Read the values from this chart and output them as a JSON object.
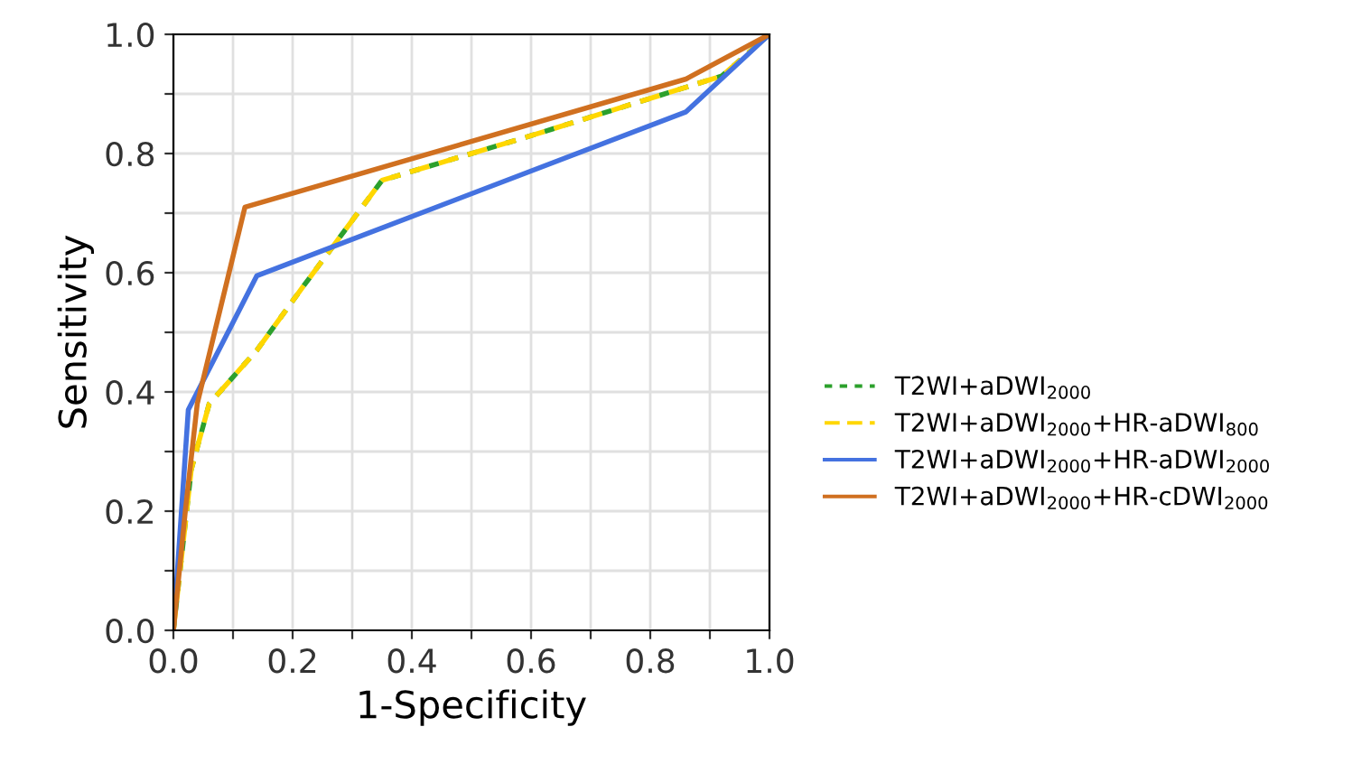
{
  "chart_data": {
    "type": "line",
    "xlabel": "1-Specificity",
    "ylabel": "Sensitivity",
    "xlim": [
      0,
      1
    ],
    "ylim": [
      0,
      1
    ],
    "xticks": [
      {
        "value": 0,
        "label": "0.0"
      },
      {
        "value": 0.1,
        "label": null
      },
      0.2,
      {
        "value": 0.3,
        "label": null
      },
      0.4,
      {
        "value": 0.5,
        "label": null
      },
      0.6,
      {
        "value": 0.7,
        "label": null
      },
      0.8,
      {
        "value": 0.9,
        "label": null
      },
      {
        "value": 1,
        "label": "1.0"
      }
    ],
    "yticks": [
      {
        "value": 0,
        "label": "0.0"
      },
      {
        "value": 0.1,
        "label": null
      },
      0.2,
      {
        "value": 0.3,
        "label": null
      },
      0.4,
      {
        "value": 0.5,
        "label": null
      },
      0.6,
      {
        "value": 0.7,
        "label": null
      },
      0.8,
      {
        "value": 0.9,
        "label": null
      },
      {
        "value": 1,
        "label": "1.0"
      }
    ],
    "grid": true,
    "legend": "right",
    "marker": "none",
    "series": [
      {
        "name": "T2WI+aDWI$_{2000}$",
        "color": "#2ca02c",
        "line_style": "dotted",
        "x": [
          0,
          0.03,
          0.06,
          0.14,
          0.22,
          0.35,
          0.6,
          0.92,
          1
        ],
        "values": [
          0,
          0.27,
          0.38,
          0.47,
          0.58,
          0.755,
          0.83,
          0.93,
          1
        ]
      },
      {
        "name": "T2WI+aDWI$_{2000}$+HR-aDWI$_{800}$",
        "color": "#ffd700",
        "line_style": "dashed",
        "x": [
          0,
          0.03,
          0.06,
          0.14,
          0.22,
          0.35,
          0.6,
          0.92,
          1
        ],
        "values": [
          0,
          0.27,
          0.38,
          0.47,
          0.58,
          0.755,
          0.83,
          0.93,
          1
        ]
      },
      {
        "name": "T2WI+aDWI$_{2000}$+HR-aDWI$_{2000}$",
        "color": "#4472e0",
        "line_style": "solid",
        "x": [
          0,
          0.025,
          0.14,
          0.86,
          1
        ],
        "values": [
          0,
          0.37,
          0.595,
          0.87,
          1
        ]
      },
      {
        "name": "T2WI+aDWI$_{2000}$+HR-cDWI$_{2000}$",
        "color": "#d07020",
        "line_style": "solid",
        "x": [
          0,
          0.02,
          0.04,
          0.12,
          0.86,
          1
        ],
        "values": [
          0,
          0.2,
          0.38,
          0.71,
          0.925,
          1
        ]
      }
    ]
  }
}
